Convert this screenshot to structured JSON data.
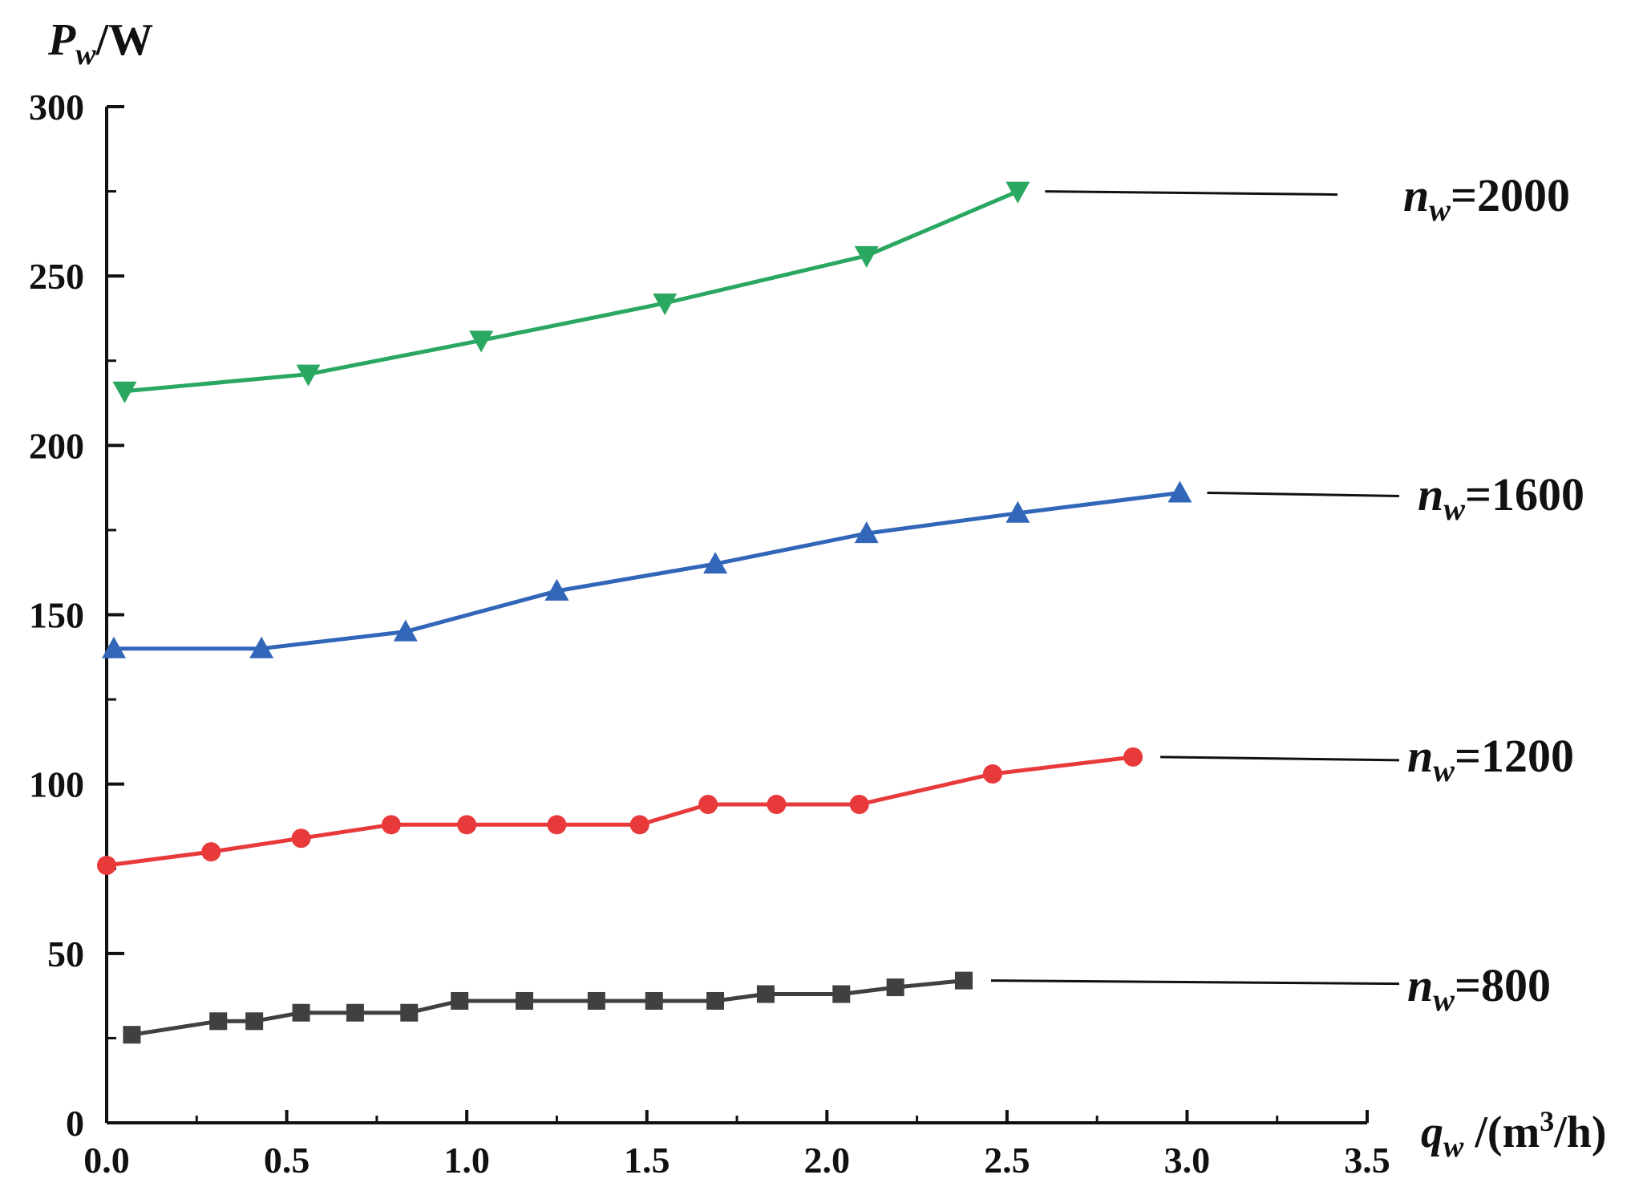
{
  "chart_data": {
    "type": "line",
    "title": "",
    "ylabel": {
      "symbol": "P",
      "sub": "w",
      "unit": "/W"
    },
    "xlabel": {
      "symbol": "q",
      "sub": "w",
      "unit_pre": " /(m",
      "unit_sup": "3",
      "unit_post": "/h)"
    },
    "xlim": [
      0,
      3.5
    ],
    "ylim": [
      0,
      300
    ],
    "x_ticks": [
      "0.0",
      "0.5",
      "1.0",
      "1.5",
      "2.0",
      "2.5",
      "3.0",
      "3.5"
    ],
    "y_ticks": [
      "0",
      "50",
      "100",
      "150",
      "200",
      "250",
      "300"
    ],
    "grid": false,
    "legend": "direct labels at right end of each curve with leader lines",
    "series": [
      {
        "name": "n_w=800",
        "label": {
          "symbol": "n",
          "sub": "w",
          "value": "=800"
        },
        "color": "#404040",
        "marker": "square",
        "x": [
          0.07,
          0.31,
          0.41,
          0.54,
          0.69,
          0.84,
          0.98,
          1.16,
          1.36,
          1.52,
          1.69,
          1.83,
          2.04,
          2.19,
          2.38
        ],
        "y": [
          26,
          30,
          30,
          32.5,
          32.5,
          32.5,
          36,
          36,
          36,
          36,
          36,
          38,
          38,
          40,
          42
        ]
      },
      {
        "name": "n_w=1200",
        "label": {
          "symbol": "n",
          "sub": "w",
          "value": "=1200"
        },
        "color": "#e8393b",
        "marker": "circle",
        "x": [
          0.0,
          0.29,
          0.54,
          0.79,
          1.0,
          1.25,
          1.48,
          1.67,
          1.86,
          2.09,
          2.46,
          2.85
        ],
        "y": [
          76,
          80,
          84,
          88,
          88,
          88,
          88,
          94,
          94,
          94,
          103,
          108
        ]
      },
      {
        "name": "n_w=1600",
        "label": {
          "symbol": "n",
          "sub": "w",
          "value": "=1600"
        },
        "color": "#3266b8",
        "marker": "triangle-up",
        "x": [
          0.02,
          0.43,
          0.83,
          1.25,
          1.69,
          2.11,
          2.53,
          2.98
        ],
        "y": [
          140,
          140,
          145,
          157,
          165,
          174,
          180,
          186
        ]
      },
      {
        "name": "n_w=2000",
        "label": {
          "symbol": "n",
          "sub": "w",
          "value": "=2000"
        },
        "color": "#2aa760",
        "marker": "triangle-down",
        "x": [
          0.05,
          0.56,
          1.04,
          1.55,
          2.11,
          2.53
        ],
        "y": [
          216,
          221,
          231,
          242,
          256,
          275
        ]
      }
    ]
  }
}
